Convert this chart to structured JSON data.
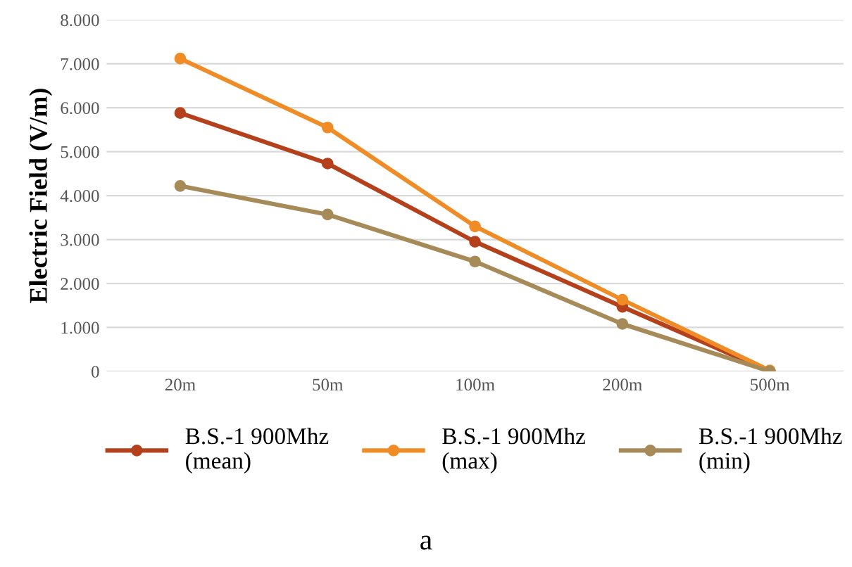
{
  "chart_data": {
    "type": "line",
    "ylabel": "Electric Field (V/m)",
    "categories": [
      "20m",
      "50m",
      "100m",
      "200m",
      "500m"
    ],
    "series": [
      {
        "name": "B.S.-1 900Mhz\n(mean)",
        "color": "#b4401c",
        "values": [
          5880,
          4730,
          2950,
          1470,
          0
        ]
      },
      {
        "name": "B.S.-1 900Mhz\n(max)",
        "color": "#f08c26",
        "values": [
          7120,
          5550,
          3300,
          1630,
          20
        ]
      },
      {
        "name": "B.S.-1 900Mhz\n(min)",
        "color": "#a68a58",
        "values": [
          4220,
          3570,
          2500,
          1080,
          0
        ]
      }
    ],
    "ylim": [
      0,
      8000
    ],
    "yticks": [
      0,
      {
        "value": 1000,
        "label": "1.000"
      },
      {
        "value": 2000,
        "label": "2.000"
      },
      {
        "value": 3000,
        "label": "3.000"
      },
      {
        "value": 4000,
        "label": "4.000"
      },
      {
        "value": 5000,
        "label": "5.000"
      },
      {
        "value": 6000,
        "label": "6.000"
      },
      {
        "value": 7000,
        "label": "7.000"
      },
      {
        "value": 8000,
        "label": "8.000"
      }
    ],
    "grid": "y",
    "legend": "bottom",
    "marker": "circle",
    "line_style": "solid",
    "annotations": [
      "a"
    ]
  }
}
